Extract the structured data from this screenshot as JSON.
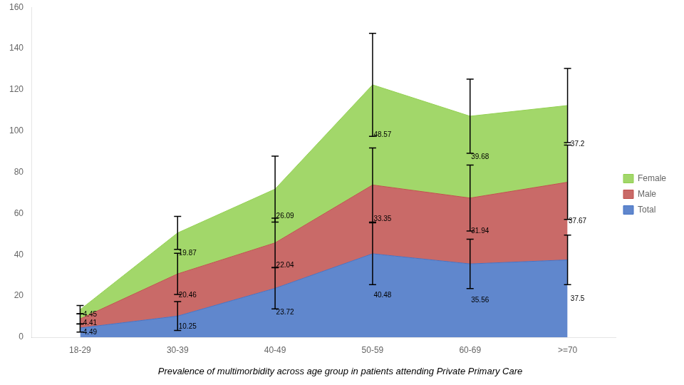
{
  "chart_data": {
    "type": "area",
    "caption": "Prevalence of multimorbidity across age group in patients attending Private Primary Care",
    "categories": [
      "18-29",
      "30-39",
      "40-49",
      "50-59",
      "60-69",
      ">=70"
    ],
    "series": [
      {
        "name": "Total",
        "color": "#4472C4",
        "values": [
          4.49,
          10.25,
          23.72,
          40.48,
          35.56,
          37.5
        ],
        "errors": [
          2.0,
          7.0,
          10.0,
          15.0,
          12.0,
          12.0
        ]
      },
      {
        "name": "Male",
        "color": "#C0504D",
        "values": [
          4.41,
          20.46,
          22.04,
          33.35,
          31.94,
          37.67
        ],
        "errors": [
          2.5,
          10.0,
          12.0,
          18.0,
          16.0,
          18.0
        ]
      },
      {
        "name": "Female",
        "color": "#92D050",
        "values": [
          4.45,
          19.87,
          26.09,
          48.57,
          39.68,
          37.2
        ],
        "errors": [
          2.0,
          8.0,
          16.0,
          25.0,
          18.0,
          18.0
        ]
      }
    ],
    "stacked": true,
    "data_labels": true,
    "ylim": [
      0,
      160
    ],
    "yticks": [
      0,
      20,
      40,
      60,
      80,
      100,
      120,
      140,
      160
    ],
    "grid": false,
    "legend": "right"
  }
}
